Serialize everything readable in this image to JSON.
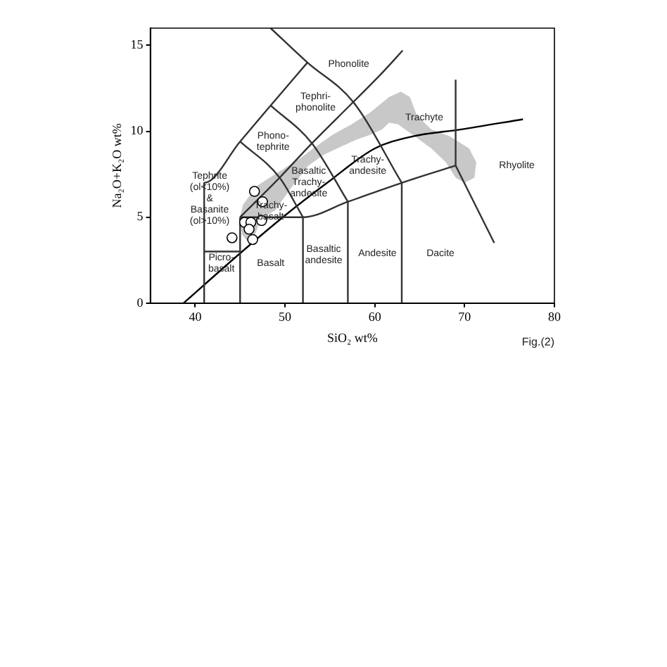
{
  "chart_data": {
    "type": "scatter",
    "xlabel": "SiO₂ wt%",
    "ylabel": "Na₂O+K₂O wt%",
    "xlim": [
      35,
      80
    ],
    "ylim": [
      0,
      16
    ],
    "xticks": [
      40,
      50,
      60,
      70,
      80
    ],
    "yticks": [
      0,
      5,
      10,
      15
    ],
    "series": [
      {
        "type": "area",
        "color": "#c8c8c8",
        "x": [
          45.0,
          45.3,
          46.8,
          49.5,
          51.6,
          53.4,
          55.3,
          57.4,
          59.5,
          61.6,
          62.9,
          63.9,
          64.7,
          66.3,
          68.4,
          70.5,
          71.3,
          71.1,
          70.0,
          69.0,
          67.9,
          66.3,
          64.2,
          62.6,
          61.6,
          60.8,
          59.5,
          57.9,
          55.8,
          54.2,
          52.6,
          51.1,
          50.0,
          48.9,
          47.9,
          47.1,
          46.6,
          45.8,
          45.2,
          45.0
        ],
        "values": [
          5.0,
          5.7,
          6.8,
          7.7,
          8.4,
          9.1,
          9.8,
          10.4,
          11.1,
          12.0,
          12.3,
          12.0,
          10.9,
          10.1,
          9.7,
          9.0,
          8.2,
          7.3,
          7.0,
          7.3,
          8.2,
          9.0,
          9.8,
          10.4,
          10.5,
          10.1,
          9.8,
          9.5,
          9.0,
          8.6,
          8.0,
          7.0,
          6.2,
          5.4,
          5.1,
          4.6,
          3.9,
          3.6,
          4.0,
          5.0
        ]
      },
      {
        "type": "line",
        "color": "#333333",
        "x": [
          41,
          41,
          45,
          48.4,
          52.5
        ],
        "values": [
          0,
          7,
          9.4,
          11.5,
          14
        ]
      },
      {
        "type": "line",
        "color": "#333333",
        "x": [
          41,
          45
        ],
        "values": [
          3,
          3
        ]
      },
      {
        "type": "line",
        "color": "#333333",
        "x": [
          45,
          45
        ],
        "values": [
          0,
          5
        ]
      },
      {
        "type": "line",
        "color": "#333333",
        "x": [
          45,
          52,
          57,
          63,
          69
        ],
        "values": [
          5,
          5,
          5.9,
          7,
          8
        ]
      },
      {
        "type": "line",
        "color": "#333333",
        "x": [
          52,
          52
        ],
        "values": [
          0,
          5
        ]
      },
      {
        "type": "line",
        "color": "#333333",
        "x": [
          57,
          57
        ],
        "values": [
          0,
          5.9
        ]
      },
      {
        "type": "line",
        "color": "#333333",
        "x": [
          63,
          63
        ],
        "values": [
          0,
          7
        ]
      },
      {
        "type": "line",
        "color": "#333333",
        "x": [
          69,
          69
        ],
        "values": [
          8,
          13
        ]
      },
      {
        "type": "line",
        "color": "#333333",
        "x": [
          69,
          73.3
        ],
        "values": [
          8,
          3.5
        ]
      },
      {
        "type": "line",
        "color": "#333333",
        "x": [
          45,
          49.4,
          53,
          57.6,
          61,
          63.1
        ],
        "values": [
          5,
          7.3,
          9.3,
          11.7,
          13.5,
          14.7
        ]
      },
      {
        "type": "line",
        "color": "#333333",
        "x": [
          52,
          49.4,
          45
        ],
        "values": [
          5,
          7.3,
          9.4
        ]
      },
      {
        "type": "line",
        "color": "#333333",
        "x": [
          57,
          53,
          48.4
        ],
        "values": [
          5.9,
          9.3,
          11.5
        ]
      },
      {
        "type": "line",
        "color": "#333333",
        "x": [
          63,
          57.6,
          52.5,
          48.4
        ],
        "values": [
          7,
          11.7,
          14,
          16
        ]
      },
      {
        "type": "line",
        "color": "#000000",
        "x": [
          38.7,
          45,
          50,
          54.7,
          60,
          64.2,
          69.5,
          76.5
        ],
        "values": [
          0,
          2.9,
          5.1,
          7.0,
          9.0,
          9.7,
          10.1,
          10.7
        ]
      },
      {
        "type": "scatter",
        "color": "#ffffff",
        "marker": "circle",
        "x": [
          46.6,
          47.5,
          45.5,
          46.2,
          47.4,
          44.1,
          46.4,
          46.0
        ],
        "values": [
          6.5,
          5.9,
          4.7,
          4.7,
          4.8,
          3.8,
          3.7,
          4.3
        ]
      }
    ],
    "annotations": [
      "Phonolite",
      "Tephri-\nphonolite",
      "Phono-\ntephrite",
      "Tephrite\n(ol<10%)\n&\nBasanite\n(ol>10%)",
      "Basaltic\nTrachy-\nandesite",
      "Trachy-\nbasalt",
      "Trachy-\nandesite",
      "Trachyte",
      "Rhyolite",
      "Picro-\nbasalt",
      "Basalt",
      "Basaltic\nandesite",
      "Andesite",
      "Dacite",
      "Fig.(2)"
    ]
  }
}
